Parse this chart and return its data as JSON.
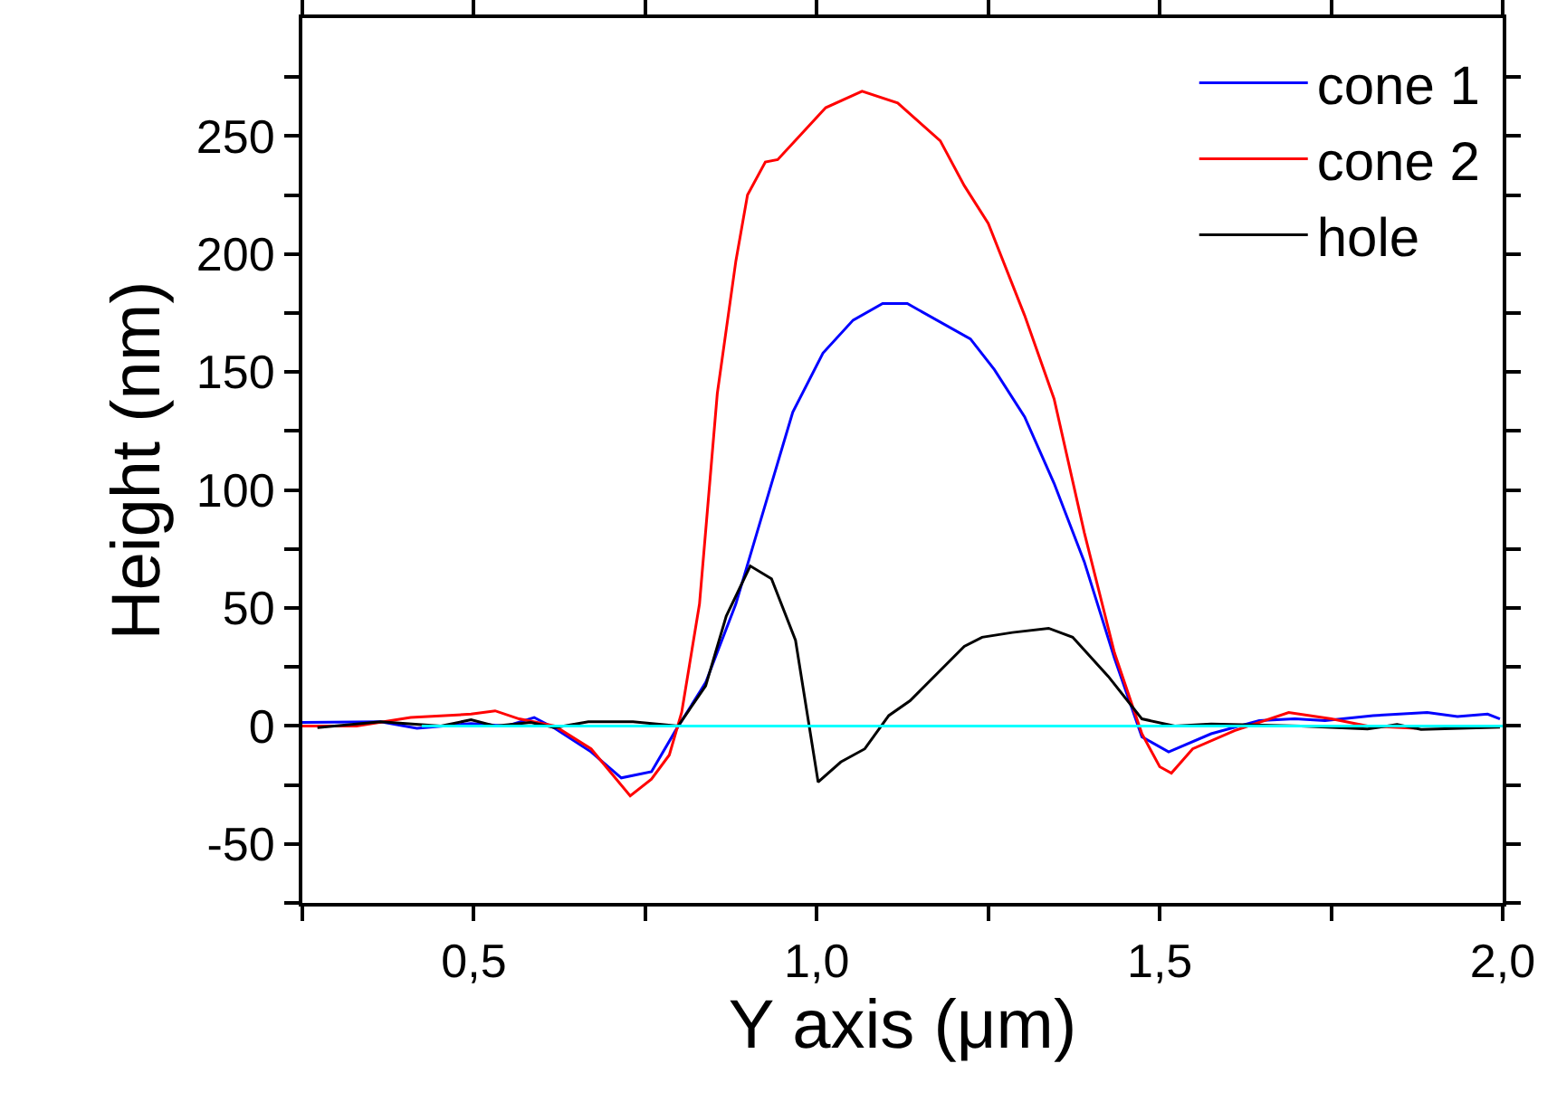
{
  "chart_data": {
    "type": "line",
    "xlabel": "Y axis (μm)",
    "ylabel": "Height (nm)",
    "xlim": [
      0.25,
      2.0
    ],
    "xticks": [
      {
        "value": 0.25,
        "label": null
      },
      {
        "value": 0.5,
        "label": "0,5"
      },
      {
        "value": 0.75,
        "label": null
      },
      {
        "value": 1.0,
        "label": "1,0"
      },
      {
        "value": 1.25,
        "label": null
      },
      {
        "value": 1.5,
        "label": "1,5"
      },
      {
        "value": 1.75,
        "label": null
      },
      {
        "value": 2.0,
        "label": "2,0"
      }
    ],
    "ylim": [
      -75,
      300
    ],
    "yticks": [
      {
        "value": -75,
        "label": null
      },
      -50,
      {
        "value": -25,
        "label": null
      },
      0,
      {
        "value": 25,
        "label": null
      },
      50,
      {
        "value": 75,
        "label": null
      },
      100,
      {
        "value": 125,
        "label": null
      },
      150,
      {
        "value": 175,
        "label": null
      },
      200,
      {
        "value": 225,
        "label": null
      },
      250,
      {
        "value": 275,
        "label": null
      }
    ],
    "grid": false,
    "legend": "top right",
    "line_style": "solid",
    "marker": "none",
    "series": [
      {
        "name": "cone 1",
        "color": "#0000ff",
        "x": [
          0.25,
          0.364,
          0.417,
          0.496,
          0.548,
          0.588,
          0.618,
          0.671,
          0.715,
          0.759,
          0.794,
          0.838,
          0.882,
          0.934,
          0.965,
          1.009,
          1.053,
          1.096,
          1.132,
          1.224,
          1.259,
          1.303,
          1.346,
          1.39,
          1.434,
          1.474,
          1.513,
          1.575,
          1.645,
          1.697,
          1.741,
          1.811,
          1.89,
          1.934,
          1.978,
          1.996
        ],
        "values": [
          1.5,
          1.8,
          -1,
          1,
          0,
          3.6,
          -1,
          -11,
          -22,
          -19.4,
          -2,
          18.4,
          51.7,
          102.7,
          133,
          158,
          172,
          179,
          179,
          164,
          151,
          131,
          102.8,
          69.6,
          28.7,
          -4.6,
          -11,
          -3.3,
          2.3,
          3,
          2.3,
          4.4,
          5.7,
          4,
          5,
          3
        ]
      },
      {
        "name": "cone 2",
        "color": "#ff0000",
        "x": [
          0.25,
          0.329,
          0.408,
          0.496,
          0.531,
          0.566,
          0.618,
          0.671,
          0.728,
          0.759,
          0.785,
          0.803,
          0.829,
          0.855,
          0.882,
          0.899,
          0.925,
          0.943,
          0.978,
          1.013,
          1.066,
          1.118,
          1.18,
          1.215,
          1.25,
          1.303,
          1.346,
          1.39,
          1.434,
          1.474,
          1.5,
          1.517,
          1.548,
          1.609,
          1.688,
          1.75,
          1.803,
          1.873
        ],
        "values": [
          0,
          0,
          3.6,
          5,
          6.4,
          3,
          0,
          -9.7,
          -29.6,
          -22.5,
          -12.3,
          5.7,
          51.7,
          141,
          197,
          225,
          239,
          240,
          251,
          262,
          269,
          264,
          248,
          229,
          213,
          174,
          138.6,
          82,
          31,
          -3.3,
          -17.3,
          -20,
          -9.7,
          -2,
          5.7,
          3,
          0,
          -1
        ]
      },
      {
        "name": "hole",
        "color": "#000000",
        "x": [
          0.272,
          0.364,
          0.452,
          0.496,
          0.531,
          0.583,
          0.618,
          0.667,
          0.732,
          0.798,
          0.838,
          0.868,
          0.903,
          0.934,
          0.969,
          1.002,
          1.035,
          1.07,
          1.105,
          1.136,
          1.215,
          1.241,
          1.285,
          1.338,
          1.373,
          1.425,
          1.474,
          1.522,
          1.575,
          1.706,
          1.803,
          1.846,
          1.881,
          1.996
        ],
        "values": [
          -0.7,
          1.8,
          0,
          2.6,
          0,
          1.5,
          -0.7,
          1.8,
          1.8,
          0,
          17,
          46.5,
          67.8,
          62.4,
          36.3,
          -23.8,
          -15.3,
          -9.7,
          4.4,
          10.7,
          33.7,
          37.6,
          39.6,
          41.4,
          37.6,
          21,
          3,
          0,
          0.8,
          0,
          -1.3,
          0.6,
          -1.5,
          -0.5
        ]
      },
      {
        "color": "#00ffff",
        "x": [
          0.424,
          2.0
        ],
        "values": [
          0,
          0
        ]
      }
    ]
  }
}
